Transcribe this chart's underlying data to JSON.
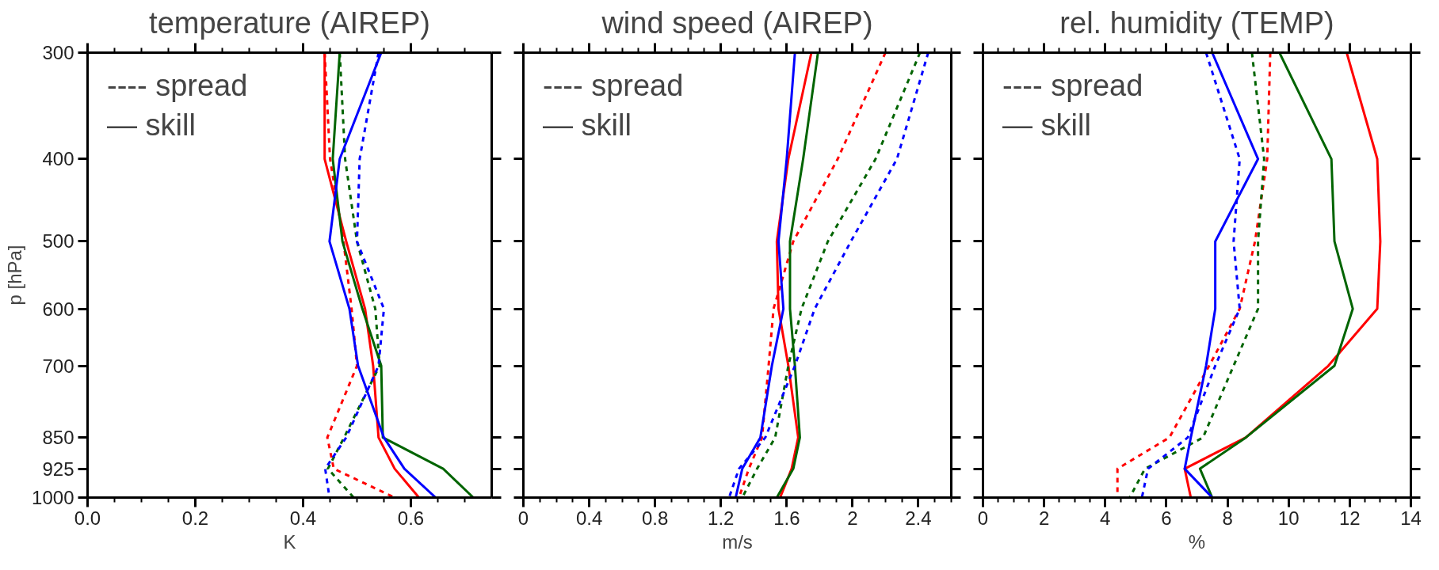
{
  "chart_data": [
    {
      "type": "line",
      "title": "temperature (AIREP)",
      "xlabel": "K",
      "ylabel": "p [hPa]",
      "log": "y",
      "annotations": [
        "---- spread",
        "— skill"
      ],
      "xlim": [
        0,
        0.75
      ],
      "xticks": [
        {
          "value": 0,
          "label": "0.0"
        },
        0.2,
        0.4,
        0.6
      ],
      "ylim": [
        1000,
        300
      ],
      "yticks": [
        300,
        400,
        500,
        600,
        700,
        850,
        925,
        1000
      ],
      "grid": false,
      "series": [
        {
          "color": "#ff0000",
          "line_style": "dashed",
          "values": [
            300,
            400,
            500,
            600,
            700,
            850,
            925,
            1000
          ],
          "x": [
            0.44,
            0.45,
            0.475,
            0.49,
            0.5,
            0.445,
            0.457,
            0.57
          ]
        },
        {
          "color": "#ff0000",
          "line_style": "solid",
          "values": [
            300,
            400,
            500,
            600,
            700,
            850,
            925,
            1000
          ],
          "x": [
            0.44,
            0.44,
            0.48,
            0.515,
            0.53,
            0.54,
            0.57,
            0.615
          ]
        },
        {
          "color": "#006400",
          "line_style": "dashed",
          "values": [
            300,
            400,
            500,
            600,
            700,
            850,
            925,
            1000
          ],
          "x": [
            0.468,
            0.478,
            0.5,
            0.534,
            0.542,
            0.476,
            0.446,
            0.494
          ]
        },
        {
          "color": "#006400",
          "line_style": "solid",
          "values": [
            300,
            400,
            500,
            600,
            700,
            850,
            925,
            1000
          ],
          "x": [
            0.468,
            0.455,
            0.473,
            0.51,
            0.545,
            0.548,
            0.66,
            0.716
          ]
        },
        {
          "color": "#0000ff",
          "line_style": "dashed",
          "values": [
            300,
            400,
            500,
            600,
            700,
            850,
            925,
            1000
          ],
          "x": [
            0.54,
            0.505,
            0.5,
            0.55,
            0.54,
            0.48,
            0.441,
            0.449
          ]
        },
        {
          "color": "#0000ff",
          "line_style": "solid",
          "values": [
            300,
            400,
            500,
            600,
            700,
            850,
            925,
            1000
          ],
          "x": [
            0.545,
            0.468,
            0.449,
            0.486,
            0.502,
            0.55,
            0.588,
            0.646
          ]
        }
      ]
    },
    {
      "type": "line",
      "title": "wind speed (AIREP)",
      "xlabel": "m/s",
      "log": "y",
      "tick_labels": "x",
      "annotations": [
        "---- spread",
        "— skill"
      ],
      "xlim": [
        0,
        2.6
      ],
      "xticks": [
        0,
        0.4,
        0.8,
        1.2,
        1.6,
        2,
        2.4
      ],
      "ylim": [
        1000,
        300
      ],
      "yticks": [
        300,
        400,
        500,
        600,
        700,
        850,
        925,
        1000
      ],
      "grid": false,
      "series": [
        {
          "color": "#ff0000",
          "line_style": "dashed",
          "values": [
            300,
            400,
            500,
            600,
            700,
            850,
            925,
            1000
          ],
          "x": [
            2.2,
            1.91,
            1.64,
            1.52,
            1.49,
            1.45,
            1.37,
            1.31
          ]
        },
        {
          "color": "#ff0000",
          "line_style": "solid",
          "values": [
            300,
            400,
            500,
            600,
            700,
            850,
            925,
            1000
          ],
          "x": [
            1.75,
            1.61,
            1.54,
            1.55,
            1.61,
            1.67,
            1.63,
            1.56
          ]
        },
        {
          "color": "#006400",
          "line_style": "dashed",
          "values": [
            300,
            400,
            500,
            600,
            700,
            850,
            925,
            1000
          ],
          "x": [
            2.41,
            2.14,
            1.85,
            1.69,
            1.61,
            1.53,
            1.42,
            1.33
          ]
        },
        {
          "color": "#006400",
          "line_style": "solid",
          "values": [
            300,
            400,
            500,
            600,
            700,
            850,
            925,
            1000
          ],
          "x": [
            1.79,
            1.7,
            1.62,
            1.62,
            1.65,
            1.68,
            1.64,
            1.54
          ]
        },
        {
          "color": "#0000ff",
          "line_style": "dashed",
          "values": [
            300,
            400,
            500,
            600,
            700,
            850,
            925,
            1000
          ],
          "x": [
            2.46,
            2.27,
            1.99,
            1.77,
            1.65,
            1.47,
            1.31,
            1.25
          ]
        },
        {
          "color": "#0000ff",
          "line_style": "solid",
          "values": [
            300,
            400,
            500,
            600,
            700,
            850,
            925,
            1000
          ],
          "x": [
            1.65,
            1.6,
            1.55,
            1.58,
            1.51,
            1.44,
            1.33,
            1.29
          ]
        }
      ]
    },
    {
      "type": "line",
      "title": "rel. humidity (TEMP)",
      "xlabel": "%",
      "log": "y",
      "tick_labels": "x",
      "annotations": [
        "---- spread",
        "— skill"
      ],
      "xlim": [
        0,
        14
      ],
      "xticks": [
        0,
        2,
        4,
        6,
        8,
        10,
        12,
        14
      ],
      "ylim": [
        1000,
        300
      ],
      "yticks": [
        300,
        400,
        500,
        600,
        700,
        850,
        925,
        1000
      ],
      "grid": false,
      "series": [
        {
          "color": "#ff0000",
          "line_style": "dashed",
          "values": [
            300,
            400,
            500,
            600,
            700,
            850,
            925,
            1000
          ],
          "x": [
            9.4,
            9.3,
            8.9,
            8.4,
            7.4,
            6.1,
            4.4,
            4.4
          ]
        },
        {
          "color": "#ff0000",
          "line_style": "solid",
          "values": [
            300,
            400,
            500,
            600,
            700,
            850,
            925,
            1000
          ],
          "x": [
            11.9,
            12.9,
            13.0,
            12.9,
            11.3,
            8.6,
            6.6,
            6.8
          ]
        },
        {
          "color": "#006400",
          "line_style": "dashed",
          "values": [
            300,
            400,
            500,
            600,
            700,
            850,
            925,
            1000
          ],
          "x": [
            8.8,
            9.2,
            9.0,
            9.0,
            8.2,
            7.2,
            5.3,
            4.8
          ]
        },
        {
          "color": "#006400",
          "line_style": "solid",
          "values": [
            300,
            400,
            500,
            600,
            700,
            850,
            925,
            1000
          ],
          "x": [
            9.7,
            11.4,
            11.5,
            12.1,
            11.5,
            8.6,
            7.1,
            7.5
          ]
        },
        {
          "color": "#0000ff",
          "line_style": "dashed",
          "values": [
            300,
            400,
            500,
            600,
            700,
            850,
            925,
            1000
          ],
          "x": [
            7.3,
            8.4,
            8.2,
            8.4,
            7.6,
            6.7,
            5.4,
            5.2
          ]
        },
        {
          "color": "#0000ff",
          "line_style": "solid",
          "values": [
            300,
            400,
            500,
            600,
            700,
            850,
            925,
            1000
          ],
          "x": [
            7.5,
            9.0,
            7.6,
            7.6,
            7.3,
            6.8,
            6.6,
            7.5
          ]
        }
      ]
    }
  ]
}
